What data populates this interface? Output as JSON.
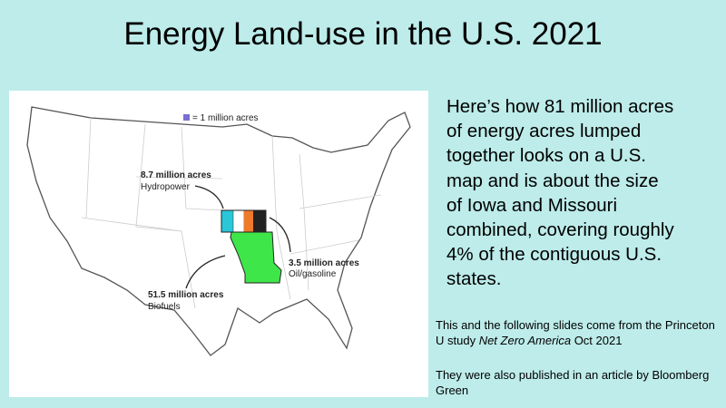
{
  "title": "Energy Land-use in the U.S. 2021",
  "map": {
    "legend": "= 1 million acres",
    "labels": [
      {
        "amount": "8.7 million acres",
        "source": "Hydropower"
      },
      {
        "amount": "3.5 million acres",
        "source": "Oil/gasoline"
      },
      {
        "amount": "51.5 million acres",
        "source": "Biofuels"
      }
    ]
  },
  "body": [
    "Here’s how 81 million acres",
    "of energy acres lumped",
    "together looks on a U.S.",
    "map  and is about the size",
    "of Iowa and Missouri",
    "combined, covering roughly",
    "4% of the contiguous U.S.",
    "states."
  ],
  "notes": [
    {
      "before": "This and the following slides  come from the Princeton U study ",
      "italic": "Net Zero America",
      "after": "  Oct 2021"
    },
    {
      "before": "They were also published in an article by Bloomberg Green"
    }
  ]
}
